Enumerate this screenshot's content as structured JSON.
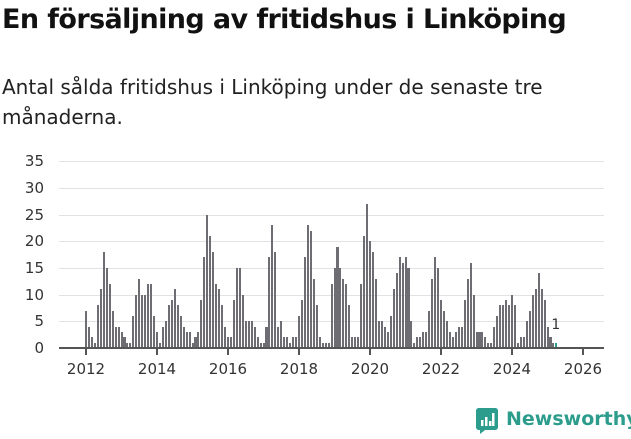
{
  "header": {
    "title": "En försäljning av fritidshus i Linköping",
    "subtitle": "Antal sålda fritidshus i Linköping under de senaste tre månaderna."
  },
  "brand": {
    "name": "Newsworthy",
    "color": "#2c9c8c"
  },
  "colors": {
    "bar": "#6e6d73",
    "highlight": "#2a9d8f"
  },
  "chart_data": {
    "type": "bar",
    "title": "En försäljning av fritidshus i Linköping",
    "subtitle": "Antal sålda fritidshus i Linköping under de senaste tre månaderna.",
    "xlabel": "",
    "ylabel": "",
    "ylim": [
      0,
      35
    ],
    "yticks": [
      0,
      5,
      10,
      15,
      20,
      25,
      30,
      35
    ],
    "xticks": [
      "2012",
      "2014",
      "2016",
      "2018",
      "2020",
      "2022",
      "2024",
      "2026"
    ],
    "grid": true,
    "start": "2012-01",
    "frequency": "monthly",
    "annotation": {
      "label": "1",
      "value": 1,
      "period": "last"
    },
    "values": [
      7,
      4,
      2,
      1,
      8,
      11,
      18,
      15,
      12,
      7,
      4,
      4,
      3,
      2,
      1,
      1,
      6,
      10,
      13,
      10,
      10,
      12,
      12,
      6,
      3,
      1,
      4,
      5,
      8,
      9,
      11,
      8,
      6,
      4,
      3,
      3,
      1,
      2,
      3,
      9,
      17,
      25,
      21,
      18,
      12,
      11,
      8,
      4,
      2,
      2,
      9,
      15,
      15,
      10,
      5,
      5,
      5,
      4,
      2,
      1,
      1,
      4,
      17,
      23,
      18,
      4,
      5,
      2,
      2,
      1,
      2,
      2,
      6,
      9,
      17,
      23,
      22,
      13,
      8,
      2,
      1,
      1,
      1,
      12,
      15,
      19,
      15,
      13,
      12,
      8,
      2,
      2,
      2,
      12,
      21,
      27,
      20,
      18,
      13,
      5,
      5,
      4,
      3,
      6,
      11,
      14,
      17,
      16,
      17,
      15,
      5,
      1,
      2,
      2,
      3,
      3,
      7,
      13,
      17,
      15,
      9,
      7,
      5,
      3,
      2,
      3,
      4,
      4,
      9,
      13,
      16,
      10,
      3,
      3,
      3,
      2,
      1,
      1,
      4,
      6,
      8,
      8,
      9,
      8,
      10,
      8,
      1,
      2,
      2,
      5,
      7,
      10,
      11,
      14,
      11,
      9,
      4,
      2,
      1,
      1
    ]
  }
}
